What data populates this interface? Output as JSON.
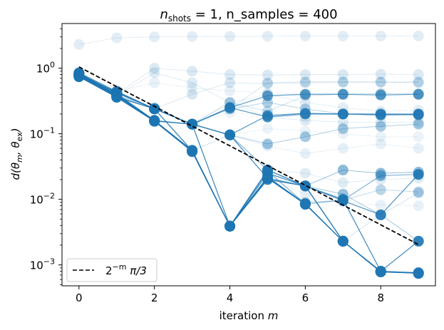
{
  "chart_data": {
    "type": "line",
    "title": {
      "math": "n",
      "sub": "shots",
      "rest": " = 1, n_samples = 400"
    },
    "xlabel": {
      "text": "iteration ",
      "math": "m"
    },
    "ylabel": {
      "text": "d(θ",
      "sub1": "m",
      "mid": ", θ",
      "sub2": "ex",
      "end": ")"
    },
    "xlim": [
      -0.45,
      9.45
    ],
    "ylim": [
      0.00048,
      4.8
    ],
    "yscale": "log",
    "xticks": [
      0,
      2,
      4,
      6,
      8
    ],
    "xtick_labels": [
      "0",
      "2",
      "4",
      "6",
      "8"
    ],
    "yticks": [
      0.001,
      0.01,
      0.1,
      1
    ],
    "ytick_labels": [
      {
        "base": "10",
        "exp": "−3"
      },
      {
        "base": "10",
        "exp": "−2"
      },
      {
        "base": "10",
        "exp": "−1"
      },
      {
        "base": "10",
        "exp": "0"
      }
    ],
    "grid": false,
    "legend": {
      "placement": "lower-left",
      "entries": [
        {
          "label_base": "2",
          "label_exp": "−m",
          "label_rest": " π/3",
          "style": "dashed",
          "color": "#000000"
        }
      ]
    },
    "reference_line": {
      "name": "2^-m π/3",
      "x": [
        0,
        1,
        2,
        3,
        4,
        5,
        6,
        7,
        8,
        9
      ],
      "y": [
        1.047,
        0.5236,
        0.2618,
        0.1309,
        0.06545,
        0.03272,
        0.01636,
        0.00818,
        0.00409,
        0.002045
      ],
      "color": "#000000"
    },
    "series_color": "#1f77b4",
    "series": [
      {
        "alpha": 1.0,
        "y": [
          0.74,
          0.36,
          0.155,
          0.054,
          0.0039,
          0.021,
          0.0084,
          0.0023,
          0.00079,
          0.00075
        ]
      },
      {
        "alpha": 1.0,
        "y": [
          0.78,
          0.38,
          0.158,
          0.055,
          0.0039,
          0.022,
          0.0085,
          0.0023,
          0.0008,
          0.00074
        ]
      },
      {
        "alpha": 0.95,
        "y": [
          0.8,
          0.4,
          0.16,
          0.056,
          0.0039,
          0.028,
          0.016,
          0.0023,
          0.00078,
          0.00075
        ]
      },
      {
        "alpha": 0.9,
        "y": [
          0.76,
          0.37,
          0.157,
          0.054,
          0.0039,
          0.025,
          0.016,
          0.0023,
          0.00079,
          0.00075
        ]
      },
      {
        "alpha": 0.9,
        "y": [
          0.82,
          0.42,
          0.24,
          0.14,
          0.0039,
          0.021,
          0.0086,
          0.0023,
          0.0008,
          0.00076
        ]
      },
      {
        "alpha": 0.85,
        "y": [
          0.85,
          0.44,
          0.24,
          0.055,
          0.0039,
          0.02,
          0.016,
          0.01,
          0.0008,
          0.0023
        ]
      },
      {
        "alpha": 0.8,
        "y": [
          0.79,
          0.39,
          0.156,
          0.14,
          0.096,
          0.021,
          0.016,
          0.0095,
          0.0058,
          0.024
        ]
      },
      {
        "alpha": 0.75,
        "y": [
          0.81,
          0.36,
          0.24,
          0.14,
          0.25,
          0.18,
          0.2,
          0.2,
          0.195,
          0.195
        ]
      },
      {
        "alpha": 0.75,
        "y": [
          0.77,
          0.43,
          0.24,
          0.14,
          0.096,
          0.19,
          0.205,
          0.2,
          0.2,
          0.2
        ]
      },
      {
        "alpha": 0.7,
        "y": [
          0.84,
          0.41,
          0.159,
          0.14,
          0.25,
          0.38,
          0.4,
          0.4,
          0.39,
          0.4
        ]
      },
      {
        "alpha": 0.55,
        "y": [
          0.75,
          0.39,
          0.157,
          0.053,
          0.0039,
          0.027,
          0.0085,
          0.0097,
          0.023,
          0.024
        ]
      },
      {
        "alpha": 0.5,
        "y": [
          0.8,
          0.37,
          0.24,
          0.14,
          0.096,
          0.028,
          0.016,
          0.028,
          0.025,
          0.026
        ]
      },
      {
        "alpha": 0.45,
        "y": [
          0.79,
          0.42,
          0.24,
          0.055,
          0.0039,
          0.021,
          0.016,
          0.012,
          0.0058,
          0.0023
        ]
      },
      {
        "alpha": 0.4,
        "y": [
          0.83,
          0.4,
          0.156,
          0.14,
          0.096,
          0.07,
          0.09,
          0.12,
          0.13,
          0.14
        ]
      },
      {
        "alpha": 0.35,
        "y": [
          0.78,
          0.38,
          0.24,
          0.14,
          0.24,
          0.3,
          0.24,
          0.2,
          0.19,
          0.2
        ]
      },
      {
        "alpha": 0.3,
        "y": [
          0.76,
          0.45,
          0.24,
          0.14,
          0.096,
          0.021,
          0.009,
          0.0097,
          0.014,
          0.013
        ]
      },
      {
        "alpha": 0.25,
        "y": [
          0.8,
          0.39,
          0.25,
          0.14,
          0.3,
          0.22,
          0.38,
          0.4,
          0.41,
          0.4
        ]
      },
      {
        "alpha": 0.22,
        "y": [
          0.82,
          0.41,
          0.157,
          0.055,
          0.096,
          0.028,
          0.016,
          0.0023,
          0.0058,
          0.0125
        ]
      },
      {
        "alpha": 0.2,
        "y": [
          0.77,
          0.37,
          0.24,
          0.14,
          0.24,
          0.6,
          0.62,
          0.62,
          0.61,
          0.62
        ]
      },
      {
        "alpha": 0.18,
        "y": [
          0.84,
          0.43,
          0.24,
          0.4,
          0.6,
          0.58,
          0.6,
          0.61,
          0.62,
          0.6
        ]
      },
      {
        "alpha": 0.16,
        "y": [
          0.79,
          0.4,
          1.0,
          0.9,
          0.8,
          0.79,
          0.8,
          0.8,
          0.81,
          0.8
        ]
      },
      {
        "alpha": 0.15,
        "y": [
          0.81,
          0.38,
          0.85,
          0.6,
          0.3,
          0.18,
          0.16,
          0.15,
          0.15,
          0.15
        ]
      },
      {
        "alpha": 0.14,
        "y": [
          0.78,
          0.42,
          0.24,
          0.14,
          0.096,
          0.028,
          0.025,
          0.018,
          0.02,
          0.021
        ]
      },
      {
        "alpha": 0.13,
        "y": [
          2.3,
          2.9,
          3.0,
          3.05,
          3.05,
          3.07,
          3.08,
          3.09,
          3.09,
          3.1
        ]
      },
      {
        "alpha": 0.12,
        "y": [
          0.83,
          0.45,
          0.24,
          0.14,
          0.3,
          0.4,
          0.3,
          0.25,
          0.22,
          0.23
        ]
      },
      {
        "alpha": 0.11,
        "y": [
          0.8,
          0.39,
          0.156,
          0.14,
          0.096,
          0.065,
          0.05,
          0.06,
          0.07,
          0.06
        ]
      },
      {
        "alpha": 0.1,
        "y": [
          0.76,
          0.36,
          0.24,
          0.055,
          0.0039,
          0.021,
          0.012,
          0.009,
          0.0082,
          0.008
        ]
      },
      {
        "alpha": 0.1,
        "y": [
          0.82,
          0.44,
          0.6,
          0.5,
          0.45,
          0.42,
          0.4,
          0.41,
          0.4,
          0.41
        ]
      },
      {
        "alpha": 0.09,
        "y": [
          0.79,
          0.41,
          0.157,
          0.14,
          0.096,
          0.12,
          0.11,
          0.1,
          0.09,
          0.09
        ]
      },
      {
        "alpha": 0.09,
        "y": [
          0.77,
          0.38,
          0.24,
          0.14,
          0.21,
          0.19,
          0.18,
          0.2,
          0.21,
          0.19
        ]
      }
    ]
  }
}
